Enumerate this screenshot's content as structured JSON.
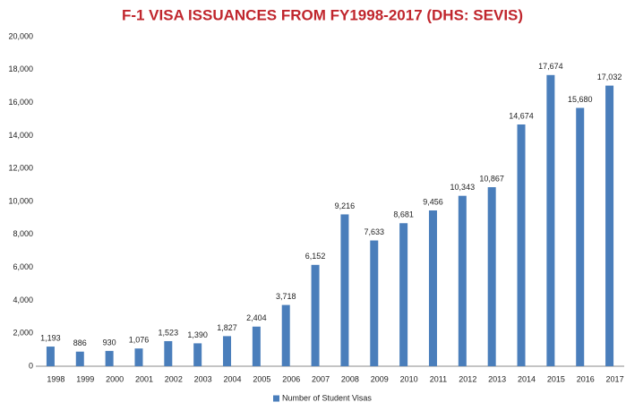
{
  "chart_data": {
    "type": "bar",
    "title": "F-1 VISA ISSUANCES FROM FY1998-2017 (DHS: SEVIS)",
    "categories": [
      "1998",
      "1999",
      "2000",
      "2001",
      "2002",
      "2003",
      "2004",
      "2005",
      "2006",
      "2007",
      "2008",
      "2009",
      "2010",
      "2011",
      "2012",
      "2013",
      "2014",
      "2015",
      "2016",
      "2017"
    ],
    "series": [
      {
        "name": "Number of Student Visas",
        "color": "#4a7ebb",
        "values": [
          1193,
          886,
          930,
          1076,
          1523,
          1390,
          1827,
          2404,
          3718,
          6152,
          9216,
          7633,
          8681,
          9456,
          10343,
          10867,
          14674,
          17674,
          15680,
          17032
        ],
        "value_labels": [
          "1,193",
          "886",
          "930",
          "1,076",
          "1,523",
          "1,390",
          "1,827",
          "2,404",
          "3,718",
          "6,152",
          "9,216",
          "7,633",
          "8,681",
          "9,456",
          "10,343",
          "10,867",
          "14,674",
          "17,674",
          "15,680",
          "17,032"
        ]
      }
    ],
    "ylim": [
      0,
      20000
    ],
    "yticks": [
      0,
      {
        "value": 2000,
        "label": "2,000"
      },
      {
        "value": 4000,
        "label": "4,000"
      },
      {
        "value": 6000,
        "label": "6,000"
      },
      {
        "value": 8000,
        "label": "8,000"
      },
      {
        "value": 10000,
        "label": "10,000"
      },
      {
        "value": 12000,
        "label": "12,000"
      },
      {
        "value": 14000,
        "label": "14,000"
      },
      {
        "value": 16000,
        "label": "16,000"
      },
      {
        "value": 18000,
        "label": "18,000"
      },
      {
        "value": 20000,
        "label": "20,000"
      }
    ],
    "grid": false,
    "legend": "bottom"
  }
}
